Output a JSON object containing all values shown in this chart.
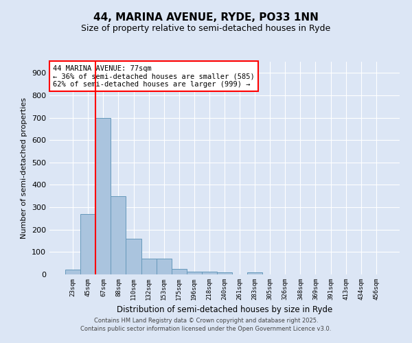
{
  "title": "44, MARINA AVENUE, RYDE, PO33 1NN",
  "subtitle": "Size of property relative to semi-detached houses in Ryde",
  "xlabel": "Distribution of semi-detached houses by size in Ryde",
  "ylabel": "Number of semi-detached properties",
  "bar_labels": [
    "23sqm",
    "45sqm",
    "67sqm",
    "88sqm",
    "110sqm",
    "132sqm",
    "153sqm",
    "175sqm",
    "196sqm",
    "218sqm",
    "240sqm",
    "261sqm",
    "283sqm",
    "305sqm",
    "326sqm",
    "348sqm",
    "369sqm",
    "391sqm",
    "413sqm",
    "434sqm",
    "456sqm"
  ],
  "bar_values": [
    20,
    270,
    700,
    350,
    160,
    70,
    70,
    25,
    12,
    12,
    10,
    0,
    10,
    0,
    0,
    0,
    0,
    0,
    0,
    0,
    0
  ],
  "bar_color": "#aac4de",
  "bar_edge_color": "#6699bb",
  "fig_bg_color": "#dce6f5",
  "axes_bg_color": "#dce6f5",
  "grid_color": "#ffffff",
  "red_line_index": 2,
  "annotation_text_line1": "44 MARINA AVENUE: 77sqm",
  "annotation_text_line2": "← 36% of semi-detached houses are smaller (585)",
  "annotation_text_line3": "62% of semi-detached houses are larger (999) →",
  "ylim": [
    0,
    950
  ],
  "yticks": [
    0,
    100,
    200,
    300,
    400,
    500,
    600,
    700,
    800,
    900
  ],
  "footer_line1": "Contains HM Land Registry data © Crown copyright and database right 2025.",
  "footer_line2": "Contains public sector information licensed under the Open Government Licence v3.0."
}
